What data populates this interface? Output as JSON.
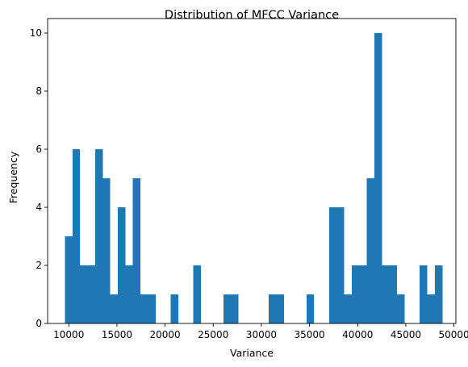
{
  "chart_data": {
    "type": "bar",
    "title": "Distribution of MFCC Variance",
    "xlabel": "Variance",
    "ylabel": "Frequency",
    "xlim": [
      7800,
      50200
    ],
    "ylim": [
      0,
      10.5
    ],
    "xticks": [
      10000,
      15000,
      20000,
      25000,
      30000,
      35000,
      40000,
      45000,
      50000
    ],
    "yticks": [
      0,
      2,
      4,
      6,
      8,
      10
    ],
    "grid": false,
    "bar_color": "#1f77b4",
    "bins": {
      "start": 9600,
      "width": 784,
      "counts": [
        3,
        6,
        2,
        2,
        6,
        5,
        1,
        4,
        2,
        5,
        1,
        1,
        0,
        0,
        1,
        0,
        0,
        2,
        0,
        0,
        0,
        1,
        1,
        0,
        0,
        0,
        0,
        1,
        1,
        0,
        0,
        0,
        1,
        0,
        0,
        4,
        4,
        1,
        2,
        2,
        5,
        10,
        2,
        2,
        1,
        0,
        0,
        2,
        1,
        2
      ]
    }
  }
}
